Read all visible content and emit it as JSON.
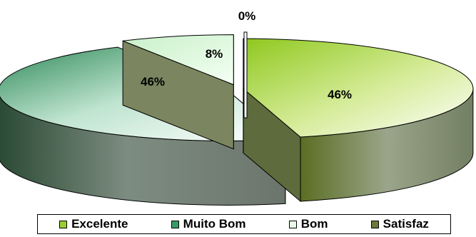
{
  "chart_data": {
    "type": "pie",
    "style": "3d-exploded",
    "categories": [
      "Excelente",
      "Muito Bom",
      "Bom",
      "Satisfaz"
    ],
    "values": [
      46,
      46,
      8,
      0
    ],
    "labels": [
      "46%",
      "46%",
      "8%",
      "0%"
    ],
    "legend_position": "bottom",
    "colors": {
      "Excelente": "#9acd32",
      "Muito Bom": "#3a9a6a",
      "Bom": "#dcf5dc",
      "Satisfaz": "#6b7a3a"
    }
  }
}
